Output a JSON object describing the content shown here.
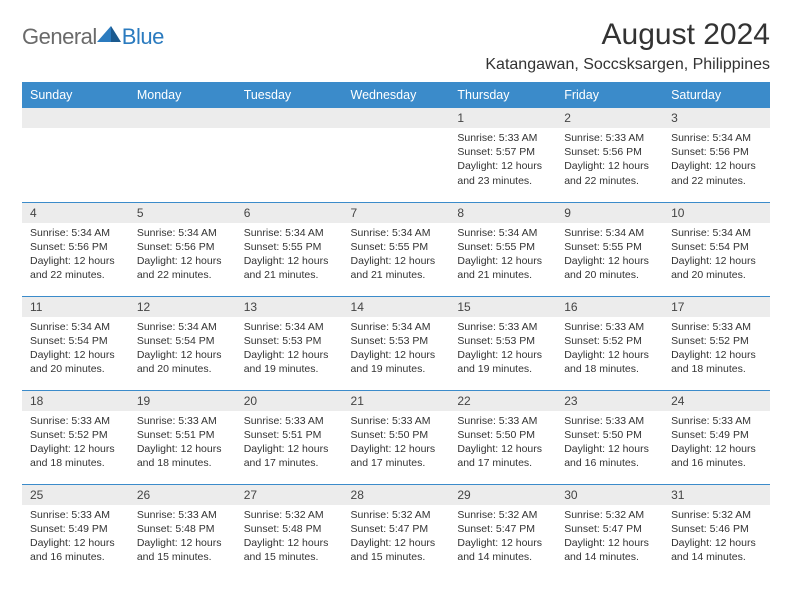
{
  "brand": {
    "part1": "General",
    "part2": "Blue"
  },
  "title": "August 2024",
  "location": "Katangawan, Soccsksargen, Philippines",
  "colors": {
    "header_bg": "#3b8bca",
    "header_text": "#ffffff",
    "daynum_bg": "#ececec",
    "row_border": "#3b8bca",
    "text": "#333333",
    "brand_gray": "#6a6a6a",
    "brand_blue": "#2b7bbf"
  },
  "day_headers": [
    "Sunday",
    "Monday",
    "Tuesday",
    "Wednesday",
    "Thursday",
    "Friday",
    "Saturday"
  ],
  "weeks": [
    [
      null,
      null,
      null,
      null,
      {
        "n": "1",
        "sunrise": "5:33 AM",
        "sunset": "5:57 PM",
        "daylight": "12 hours and 23 minutes."
      },
      {
        "n": "2",
        "sunrise": "5:33 AM",
        "sunset": "5:56 PM",
        "daylight": "12 hours and 22 minutes."
      },
      {
        "n": "3",
        "sunrise": "5:34 AM",
        "sunset": "5:56 PM",
        "daylight": "12 hours and 22 minutes."
      }
    ],
    [
      {
        "n": "4",
        "sunrise": "5:34 AM",
        "sunset": "5:56 PM",
        "daylight": "12 hours and 22 minutes."
      },
      {
        "n": "5",
        "sunrise": "5:34 AM",
        "sunset": "5:56 PM",
        "daylight": "12 hours and 22 minutes."
      },
      {
        "n": "6",
        "sunrise": "5:34 AM",
        "sunset": "5:55 PM",
        "daylight": "12 hours and 21 minutes."
      },
      {
        "n": "7",
        "sunrise": "5:34 AM",
        "sunset": "5:55 PM",
        "daylight": "12 hours and 21 minutes."
      },
      {
        "n": "8",
        "sunrise": "5:34 AM",
        "sunset": "5:55 PM",
        "daylight": "12 hours and 21 minutes."
      },
      {
        "n": "9",
        "sunrise": "5:34 AM",
        "sunset": "5:55 PM",
        "daylight": "12 hours and 20 minutes."
      },
      {
        "n": "10",
        "sunrise": "5:34 AM",
        "sunset": "5:54 PM",
        "daylight": "12 hours and 20 minutes."
      }
    ],
    [
      {
        "n": "11",
        "sunrise": "5:34 AM",
        "sunset": "5:54 PM",
        "daylight": "12 hours and 20 minutes."
      },
      {
        "n": "12",
        "sunrise": "5:34 AM",
        "sunset": "5:54 PM",
        "daylight": "12 hours and 20 minutes."
      },
      {
        "n": "13",
        "sunrise": "5:34 AM",
        "sunset": "5:53 PM",
        "daylight": "12 hours and 19 minutes."
      },
      {
        "n": "14",
        "sunrise": "5:34 AM",
        "sunset": "5:53 PM",
        "daylight": "12 hours and 19 minutes."
      },
      {
        "n": "15",
        "sunrise": "5:33 AM",
        "sunset": "5:53 PM",
        "daylight": "12 hours and 19 minutes."
      },
      {
        "n": "16",
        "sunrise": "5:33 AM",
        "sunset": "5:52 PM",
        "daylight": "12 hours and 18 minutes."
      },
      {
        "n": "17",
        "sunrise": "5:33 AM",
        "sunset": "5:52 PM",
        "daylight": "12 hours and 18 minutes."
      }
    ],
    [
      {
        "n": "18",
        "sunrise": "5:33 AM",
        "sunset": "5:52 PM",
        "daylight": "12 hours and 18 minutes."
      },
      {
        "n": "19",
        "sunrise": "5:33 AM",
        "sunset": "5:51 PM",
        "daylight": "12 hours and 18 minutes."
      },
      {
        "n": "20",
        "sunrise": "5:33 AM",
        "sunset": "5:51 PM",
        "daylight": "12 hours and 17 minutes."
      },
      {
        "n": "21",
        "sunrise": "5:33 AM",
        "sunset": "5:50 PM",
        "daylight": "12 hours and 17 minutes."
      },
      {
        "n": "22",
        "sunrise": "5:33 AM",
        "sunset": "5:50 PM",
        "daylight": "12 hours and 17 minutes."
      },
      {
        "n": "23",
        "sunrise": "5:33 AM",
        "sunset": "5:50 PM",
        "daylight": "12 hours and 16 minutes."
      },
      {
        "n": "24",
        "sunrise": "5:33 AM",
        "sunset": "5:49 PM",
        "daylight": "12 hours and 16 minutes."
      }
    ],
    [
      {
        "n": "25",
        "sunrise": "5:33 AM",
        "sunset": "5:49 PM",
        "daylight": "12 hours and 16 minutes."
      },
      {
        "n": "26",
        "sunrise": "5:33 AM",
        "sunset": "5:48 PM",
        "daylight": "12 hours and 15 minutes."
      },
      {
        "n": "27",
        "sunrise": "5:32 AM",
        "sunset": "5:48 PM",
        "daylight": "12 hours and 15 minutes."
      },
      {
        "n": "28",
        "sunrise": "5:32 AM",
        "sunset": "5:47 PM",
        "daylight": "12 hours and 15 minutes."
      },
      {
        "n": "29",
        "sunrise": "5:32 AM",
        "sunset": "5:47 PM",
        "daylight": "12 hours and 14 minutes."
      },
      {
        "n": "30",
        "sunrise": "5:32 AM",
        "sunset": "5:47 PM",
        "daylight": "12 hours and 14 minutes."
      },
      {
        "n": "31",
        "sunrise": "5:32 AM",
        "sunset": "5:46 PM",
        "daylight": "12 hours and 14 minutes."
      }
    ]
  ],
  "labels": {
    "sunrise": "Sunrise: ",
    "sunset": "Sunset: ",
    "daylight": "Daylight: "
  }
}
